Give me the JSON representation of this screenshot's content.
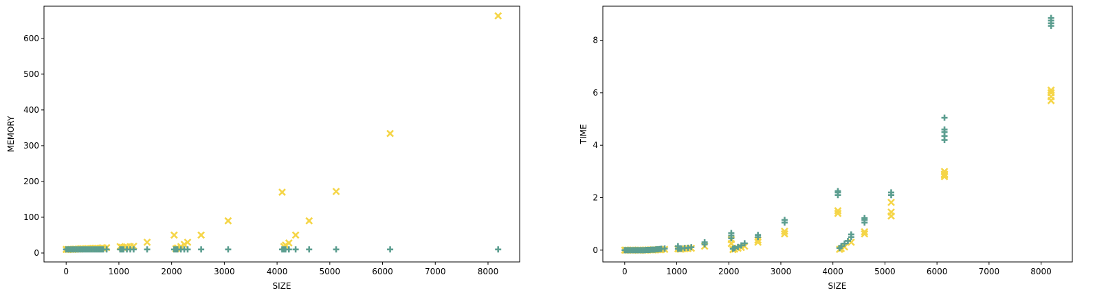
{
  "colors": {
    "memory_series": "#f5d547",
    "time_series": "#5c9e90",
    "axis": "#000000",
    "background": "#ffffff"
  },
  "chart_data": [
    {
      "id": "memory",
      "type": "scatter",
      "title": "",
      "xlabel": "SIZE",
      "ylabel": "MEMORY",
      "xlim": [
        -420,
        8600
      ],
      "ylim": [
        -25,
        690
      ],
      "xticks": [
        0,
        1000,
        2000,
        3000,
        4000,
        5000,
        6000,
        7000,
        8000
      ],
      "yticks": [
        0,
        100,
        200,
        300,
        400,
        500,
        600
      ],
      "series": [
        {
          "name": "yellow-x",
          "marker": "x",
          "color": "#f5d547",
          "x": [
            0,
            32,
            64,
            96,
            128,
            160,
            192,
            224,
            256,
            288,
            320,
            352,
            384,
            416,
            448,
            480,
            512,
            544,
            576,
            608,
            640,
            672,
            704,
            768,
            1024,
            1056,
            1088,
            1152,
            1216,
            1280,
            1536,
            2048,
            2080,
            2112,
            2176,
            2240,
            2304,
            2560,
            3072,
            4096,
            4128,
            4160,
            4224,
            4352,
            4608,
            5120,
            6144,
            8192
          ],
          "y": [
            10,
            10,
            10,
            10,
            10,
            11,
            11,
            11,
            11,
            12,
            12,
            12,
            12,
            12,
            12,
            13,
            13,
            13,
            13,
            13,
            13,
            14,
            14,
            15,
            18,
            16,
            15,
            17,
            18,
            19,
            30,
            50,
            12,
            14,
            18,
            24,
            30,
            50,
            90,
            170,
            18,
            22,
            28,
            50,
            90,
            172,
            334,
            663
          ]
        },
        {
          "name": "teal-plus",
          "marker": "plus",
          "color": "#5c9e90",
          "x": [
            0,
            32,
            64,
            96,
            128,
            160,
            192,
            224,
            256,
            288,
            320,
            352,
            384,
            416,
            448,
            480,
            512,
            544,
            576,
            608,
            640,
            672,
            704,
            768,
            1024,
            1056,
            1088,
            1152,
            1216,
            1280,
            1536,
            2048,
            2080,
            2112,
            2176,
            2240,
            2304,
            2560,
            3072,
            4096,
            4128,
            4160,
            4224,
            4352,
            4608,
            5120,
            6144,
            8192
          ],
          "y": [
            10,
            10,
            10,
            10,
            10,
            10,
            10,
            10,
            10,
            10,
            10,
            10,
            10,
            10,
            10,
            10,
            10,
            10,
            10,
            10,
            10,
            10,
            10,
            10,
            10,
            10,
            10,
            10,
            10,
            10,
            10,
            10,
            10,
            10,
            10,
            10,
            10,
            10,
            10,
            10,
            10,
            10,
            10,
            10,
            10,
            10,
            10,
            10
          ]
        }
      ]
    },
    {
      "id": "time",
      "type": "scatter",
      "title": "",
      "xlabel": "SIZE",
      "ylabel": "TIME",
      "xlim": [
        -420,
        8600
      ],
      "ylim": [
        -0.45,
        9.3
      ],
      "xticks": [
        0,
        1000,
        2000,
        3000,
        4000,
        5000,
        6000,
        7000,
        8000
      ],
      "yticks": [
        0,
        2,
        4,
        6,
        8
      ],
      "series": [
        {
          "name": "yellow-x",
          "marker": "x",
          "color": "#f5d547",
          "x": [
            0,
            32,
            64,
            96,
            128,
            160,
            192,
            224,
            256,
            288,
            320,
            352,
            384,
            416,
            448,
            480,
            512,
            544,
            576,
            608,
            640,
            672,
            704,
            768,
            1024,
            1056,
            1088,
            1152,
            1216,
            1280,
            1536,
            2048,
            2048,
            2080,
            2112,
            2176,
            2240,
            2304,
            2560,
            2560,
            3072,
            3072,
            4096,
            4096,
            4128,
            4160,
            4224,
            4352,
            4608,
            4608,
            5120,
            5120,
            5120,
            6144,
            6144,
            6144,
            6144,
            8192,
            8192,
            8192,
            8192
          ],
          "y": [
            0,
            0,
            0,
            0,
            0,
            0,
            0,
            0,
            0,
            0,
            0,
            0,
            0,
            0,
            0.01,
            0.01,
            0.01,
            0.01,
            0.01,
            0.01,
            0.02,
            0.02,
            0.02,
            0.03,
            0.05,
            0.04,
            0.04,
            0.05,
            0.06,
            0.07,
            0.15,
            0.25,
            0.4,
            0.02,
            0.04,
            0.07,
            0.1,
            0.15,
            0.3,
            0.38,
            0.62,
            0.72,
            1.4,
            1.5,
            0.03,
            0.06,
            0.12,
            0.3,
            0.62,
            0.7,
            1.3,
            1.45,
            1.82,
            2.8,
            2.9,
            3.0,
            2.85,
            5.7,
            5.85,
            6.0,
            6.1
          ]
        },
        {
          "name": "teal-plus",
          "marker": "plus",
          "color": "#5c9e90",
          "x": [
            0,
            32,
            64,
            96,
            128,
            160,
            192,
            224,
            256,
            288,
            320,
            352,
            384,
            416,
            448,
            480,
            512,
            544,
            576,
            608,
            640,
            672,
            704,
            768,
            1024,
            1024,
            1056,
            1088,
            1152,
            1216,
            1280,
            1536,
            1536,
            2048,
            2048,
            2048,
            2080,
            2112,
            2176,
            2240,
            2304,
            2560,
            2560,
            3072,
            3072,
            4096,
            4096,
            4096,
            4128,
            4160,
            4224,
            4288,
            4352,
            4352,
            4608,
            4608,
            4608,
            5120,
            5120,
            6144,
            6144,
            6144,
            6144,
            6144,
            8192,
            8192,
            8192,
            8192
          ],
          "y": [
            0,
            0,
            0,
            0,
            0,
            0,
            0,
            0,
            0,
            0,
            0,
            0,
            0,
            0.01,
            0.01,
            0.01,
            0.02,
            0.02,
            0.02,
            0.03,
            0.03,
            0.04,
            0.05,
            0.06,
            0.05,
            0.15,
            0.06,
            0.06,
            0.08,
            0.09,
            0.11,
            0.22,
            0.3,
            0.45,
            0.55,
            0.65,
            0.05,
            0.08,
            0.12,
            0.18,
            0.26,
            0.5,
            0.58,
            1.05,
            1.15,
            2.1,
            2.2,
            2.25,
            0.08,
            0.15,
            0.25,
            0.35,
            0.5,
            0.6,
            1.05,
            1.15,
            1.22,
            2.1,
            2.2,
            4.2,
            4.35,
            4.5,
            4.6,
            5.05,
            8.55,
            8.65,
            8.75,
            8.85
          ]
        }
      ]
    }
  ]
}
